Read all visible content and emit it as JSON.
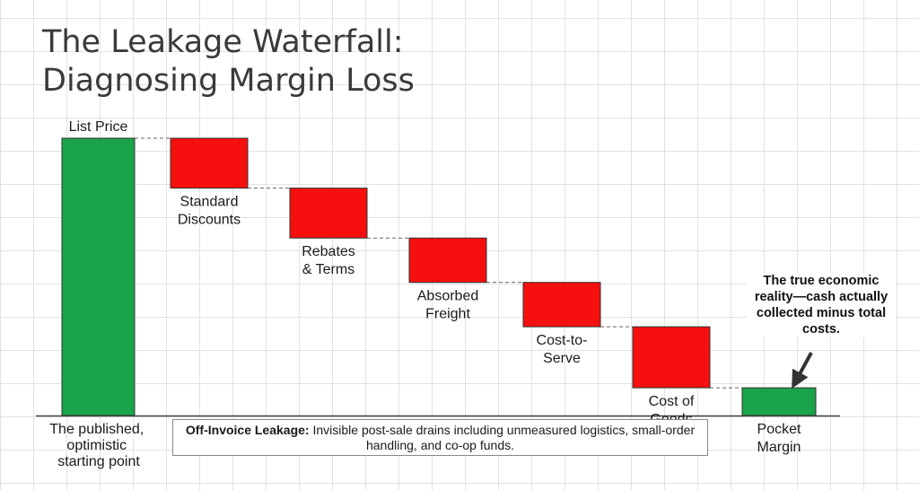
{
  "title_lines": [
    "The Leakage Waterfall:",
    "Diagnosing Margin Loss"
  ],
  "colors": {
    "positive": "#1aa34a",
    "negative": "#f50f0f",
    "outline": "#333333",
    "connector": "#666666"
  },
  "chart_data": {
    "type": "bar",
    "subtype": "waterfall",
    "title": "The Leakage Waterfall: Diagnosing Margin Loss",
    "ylim": [
      0,
      100
    ],
    "grid": true,
    "steps": [
      {
        "category": "List Price",
        "label_lines": [
          "List Price"
        ],
        "value": 100,
        "kind": "total"
      },
      {
        "category": "Standard Discounts",
        "label_lines": [
          "Standard",
          "Discounts"
        ],
        "value": -18,
        "kind": "decrease"
      },
      {
        "category": "Rebates & Terms",
        "label_lines": [
          "Rebates",
          "& Terms"
        ],
        "value": -18,
        "kind": "decrease"
      },
      {
        "category": "Absorbed Freight",
        "label_lines": [
          "Absorbed",
          "Freight"
        ],
        "value": -16,
        "kind": "decrease"
      },
      {
        "category": "Cost-to-Serve",
        "label_lines": [
          "Cost-to-",
          "Serve"
        ],
        "value": -16,
        "kind": "decrease"
      },
      {
        "category": "Cost of Goods",
        "label_lines": [
          "Cost of",
          "Goods"
        ],
        "value": -22,
        "kind": "decrease"
      },
      {
        "category": "Pocket Margin",
        "label_lines": [
          "Pocket",
          "Margin"
        ],
        "value": 10,
        "kind": "total"
      }
    ],
    "annotations": {
      "list_price_note_lines": [
        "The published,",
        "optimistic",
        "starting point"
      ],
      "leakage_bold": "Off-Invoice Leakage:",
      "leakage_text": "Invisible post-sale drains including unmeasured logistics, small-order handling, and co-op funds.",
      "pocket_margin_note": "The true economic reality—cash actually collected minus total costs."
    }
  }
}
